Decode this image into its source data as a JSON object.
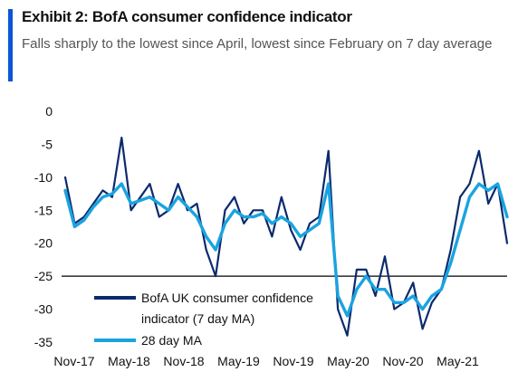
{
  "header": {
    "title": "Exhibit 2: BofA consumer confidence indicator",
    "subtitle": "Falls sharply to the lowest since April, lowest since February on 7 day average"
  },
  "colors": {
    "accent": "#0a56d6",
    "series_7day": "#0b2a6e",
    "series_28day": "#1aa3e0",
    "reference_line": "#000000"
  },
  "chart_data": {
    "type": "line",
    "title": "",
    "xlabel": "",
    "ylabel": "",
    "ylim": [
      -35,
      0
    ],
    "yticks": [
      0,
      -5,
      -10,
      -15,
      -20,
      -25,
      -30,
      -35
    ],
    "xlim": [
      "2017-11",
      "2021-11"
    ],
    "xticks": [
      "Nov-17",
      "May-18",
      "Nov-18",
      "May-19",
      "Nov-19",
      "May-20",
      "Nov-20",
      "May-21"
    ],
    "grid": false,
    "reference_line": -25,
    "legend_placement": "bottom-left",
    "legend": [
      "BofA UK consumer confidence indicator (7 day MA)",
      "28 day MA"
    ],
    "x": [
      "2017-11",
      "2017-12",
      "2018-01",
      "2018-02",
      "2018-03",
      "2018-04",
      "2018-05",
      "2018-06",
      "2018-07",
      "2018-08",
      "2018-09",
      "2018-10",
      "2018-11",
      "2018-12",
      "2019-01",
      "2019-02",
      "2019-03",
      "2019-04",
      "2019-05",
      "2019-06",
      "2019-07",
      "2019-08",
      "2019-09",
      "2019-10",
      "2019-11",
      "2019-12",
      "2020-01",
      "2020-02",
      "2020-03",
      "2020-04",
      "2020-05",
      "2020-06",
      "2020-07",
      "2020-08",
      "2020-09",
      "2020-10",
      "2020-11",
      "2020-12",
      "2021-01",
      "2021-02",
      "2021-03",
      "2021-04",
      "2021-05",
      "2021-06",
      "2021-07",
      "2021-08",
      "2021-09",
      "2021-10"
    ],
    "series": [
      {
        "name": "BofA UK consumer confidence indicator (7 day MA)",
        "values": [
          -10,
          -17,
          -16,
          -14,
          -12,
          -13,
          -4,
          -15,
          -13,
          -11,
          -16,
          -15,
          -11,
          -15,
          -14,
          -21,
          -25,
          -15,
          -13,
          -17,
          -15,
          -15,
          -19,
          -13,
          -18,
          -21,
          -17,
          -16,
          -6,
          -30,
          -34,
          -24,
          -24,
          -28,
          -22,
          -30,
          -29,
          -26,
          -33,
          -29,
          -27,
          -21,
          -13,
          -11,
          -6,
          -14,
          -11,
          -20
        ]
      },
      {
        "name": "28 day MA",
        "values": [
          -12,
          -17.5,
          -16.5,
          -14.5,
          -13,
          -12.5,
          -11,
          -14,
          -13.5,
          -13,
          -14,
          -15,
          -13,
          -14.5,
          -16,
          -19,
          -21,
          -17,
          -15,
          -16,
          -16,
          -15.5,
          -17,
          -16,
          -17,
          -19,
          -18,
          -17,
          -11,
          -28,
          -31,
          -27,
          -25,
          -27,
          -27,
          -29,
          -29,
          -28,
          -30,
          -28,
          -27,
          -23,
          -18,
          -13,
          -11,
          -12,
          -11,
          -16
        ]
      }
    ]
  }
}
